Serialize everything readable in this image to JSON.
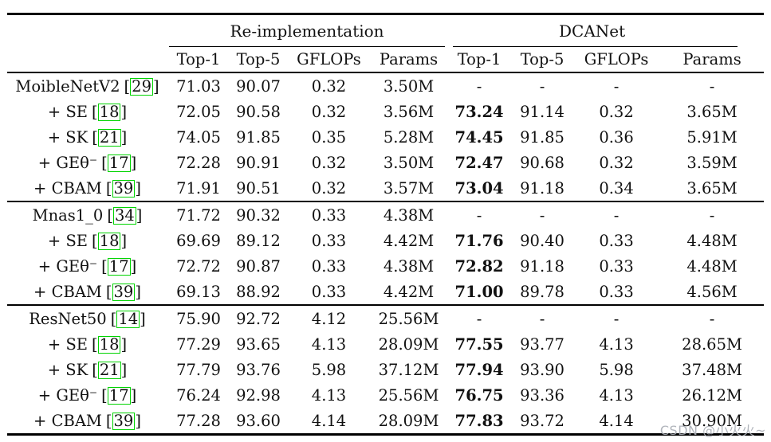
{
  "watermark": {
    "text": "CSDN @小火火~"
  },
  "table": {
    "accent_green": "#00d400",
    "groups": [
      {
        "label": "Re-implementation"
      },
      {
        "label": "DCANet"
      }
    ],
    "columns": [
      "Top-1",
      "Top-5",
      "GFLOPs",
      "Params",
      "Top-1",
      "Top-5",
      "GFLOPs",
      "Params"
    ],
    "brackets": {
      "open": "[",
      "close": "]"
    },
    "blocks": [
      {
        "rows": [
          {
            "label": "MoibleNetV2",
            "cite": "29",
            "values": [
              "71.03",
              "90.07",
              "0.32",
              "3.50M",
              "-",
              "-",
              "-",
              "-"
            ],
            "bold_dca_top1": false
          },
          {
            "label": "+ SE",
            "cite": "18",
            "values": [
              "72.05",
              "90.58",
              "0.32",
              "3.56M",
              "73.24",
              "91.14",
              "0.32",
              "3.65M"
            ],
            "bold_dca_top1": true
          },
          {
            "label": "+ SK",
            "cite": "21",
            "values": [
              "74.05",
              "91.85",
              "0.35",
              "5.28M",
              "74.45",
              "91.85",
              "0.36",
              "5.91M"
            ],
            "bold_dca_top1": true
          },
          {
            "label": "+ GEθ⁻",
            "cite": "17",
            "values": [
              "72.28",
              "90.91",
              "0.32",
              "3.50M",
              "72.47",
              "90.68",
              "0.32",
              "3.59M"
            ],
            "bold_dca_top1": true
          },
          {
            "label": "+ CBAM",
            "cite": "39",
            "values": [
              "71.91",
              "90.51",
              "0.32",
              "3.57M",
              "73.04",
              "91.18",
              "0.34",
              "3.65M"
            ],
            "bold_dca_top1": true
          }
        ]
      },
      {
        "rows": [
          {
            "label": "Mnas1_0",
            "cite": "34",
            "values": [
              "71.72",
              "90.32",
              "0.33",
              "4.38M",
              "-",
              "-",
              "-",
              "-"
            ],
            "bold_dca_top1": false
          },
          {
            "label": "+ SE",
            "cite": "18",
            "values": [
              "69.69",
              "89.12",
              "0.33",
              "4.42M",
              "71.76",
              "90.40",
              "0.33",
              "4.48M"
            ],
            "bold_dca_top1": true
          },
          {
            "label": "+ GEθ⁻",
            "cite": "17",
            "values": [
              "72.72",
              "90.87",
              "0.33",
              "4.38M",
              "72.82",
              "91.18",
              "0.33",
              "4.48M"
            ],
            "bold_dca_top1": true
          },
          {
            "label": "+ CBAM",
            "cite": "39",
            "values": [
              "69.13",
              "88.92",
              "0.33",
              "4.42M",
              "71.00",
              "89.78",
              "0.33",
              "4.56M"
            ],
            "bold_dca_top1": true
          }
        ]
      },
      {
        "rows": [
          {
            "label": "ResNet50",
            "cite": "14",
            "values": [
              "75.90",
              "92.72",
              "4.12",
              "25.56M",
              "-",
              "-",
              "-",
              "-"
            ],
            "bold_dca_top1": false
          },
          {
            "label": "+ SE",
            "cite": "18",
            "values": [
              "77.29",
              "93.65",
              "4.13",
              "28.09M",
              "77.55",
              "93.77",
              "4.13",
              "28.65M"
            ],
            "bold_dca_top1": true
          },
          {
            "label": "+ SK",
            "cite": "21",
            "values": [
              "77.79",
              "93.76",
              "5.98",
              "37.12M",
              "77.94",
              "93.90",
              "5.98",
              "37.48M"
            ],
            "bold_dca_top1": true
          },
          {
            "label": "+ GEθ⁻",
            "cite": "17",
            "values": [
              "76.24",
              "92.98",
              "4.13",
              "25.56M",
              "76.75",
              "93.36",
              "4.13",
              "26.12M"
            ],
            "bold_dca_top1": true
          },
          {
            "label": "+ CBAM",
            "cite": "39",
            "values": [
              "77.28",
              "93.60",
              "4.14",
              "28.09M",
              "77.83",
              "93.72",
              "4.14",
              "30.90M"
            ],
            "bold_dca_top1": true
          }
        ]
      }
    ]
  }
}
